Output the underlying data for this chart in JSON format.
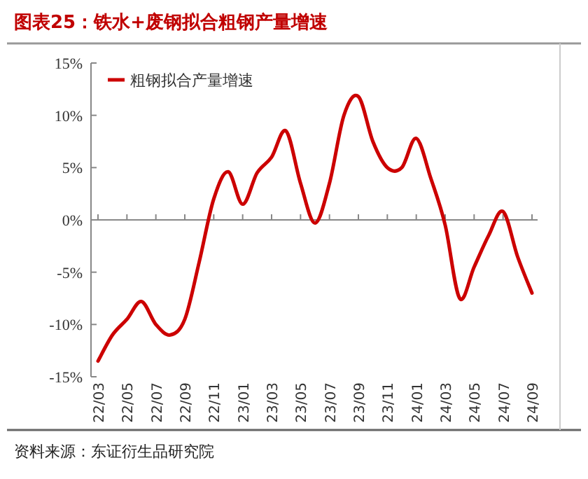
{
  "chart_data": {
    "type": "line",
    "title": "图表25：铁水+废钢拟合粗钢产量增速",
    "annotations": [
      "资料来源：东证衍生品研究院"
    ],
    "categories": [
      "22/03",
      null,
      "22/05",
      null,
      "22/07",
      null,
      "22/09",
      null,
      "22/11",
      null,
      "23/01",
      null,
      "23/03",
      null,
      "23/05",
      null,
      "23/07",
      null,
      "23/09",
      null,
      "23/11",
      null,
      "24/01",
      null,
      "24/03",
      null,
      "24/05",
      null,
      "24/07",
      null,
      "24/09"
    ],
    "series": [
      {
        "name": "粗钢拟合产量增速",
        "color": "#cc0000",
        "values": [
          -13.5,
          -11,
          -9.5,
          -7.8,
          -10,
          -11,
          -9.5,
          -4,
          2,
          4.6,
          1.5,
          4.5,
          6,
          8.5,
          3.5,
          -0.3,
          3.5,
          10,
          11.8,
          7.5,
          5,
          5,
          7.8,
          4,
          -0.5,
          -7.5,
          -4.5,
          -1.5,
          0.8,
          -3.5,
          -7
        ]
      }
    ],
    "ylim": [
      -15,
      15
    ],
    "yticks": [
      {
        "value": -15,
        "label": "-15%"
      },
      {
        "value": -10,
        "label": "-10%"
      },
      {
        "value": -5,
        "label": "-5%"
      },
      {
        "value": 0,
        "label": "0%"
      },
      {
        "value": 5,
        "label": "5%"
      },
      {
        "value": 10,
        "label": "10%"
      },
      {
        "value": 15,
        "label": "15%"
      }
    ],
    "legend": "top left"
  }
}
